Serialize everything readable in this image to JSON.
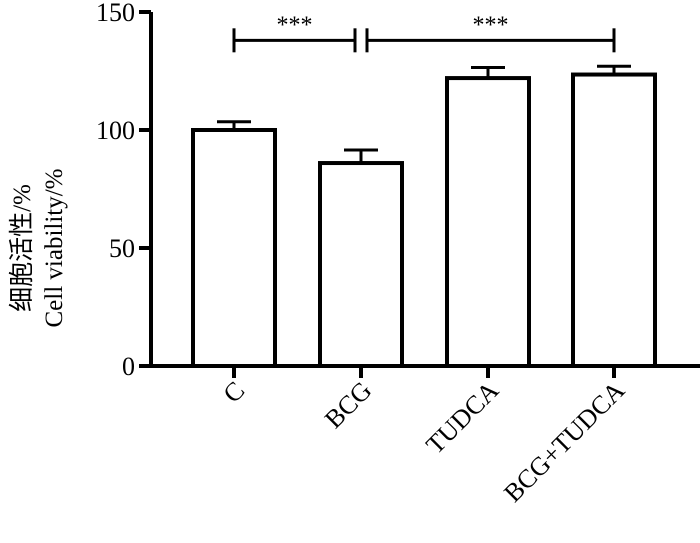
{
  "chart_data": {
    "type": "bar",
    "categories": [
      "C",
      "BCG",
      "TUDCA",
      "BCG+TUDCA"
    ],
    "values": [
      100,
      86,
      122,
      123.5
    ],
    "errors": [
      3.5,
      5.5,
      4.5,
      3.5
    ],
    "ylabel_lines": [
      "细胞活性/%",
      "Cell viability/%"
    ],
    "xlabel": "",
    "ylim": [
      0,
      150
    ],
    "yticks": [
      0,
      50,
      100,
      150
    ],
    "grid": false,
    "significance": [
      {
        "from": 0,
        "to": 1,
        "label": "***",
        "y": 138
      },
      {
        "from": 1,
        "to": 3,
        "label": "***",
        "y": 138
      }
    ],
    "colors": {
      "bar_fill": "#ffffff",
      "bar_stroke": "#000000"
    }
  }
}
